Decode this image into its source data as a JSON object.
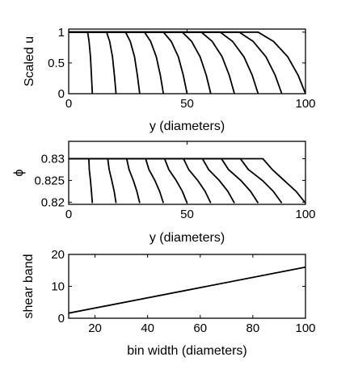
{
  "chart_data": [
    {
      "type": "line",
      "xlabel": "y (diameters)",
      "ylabel": "Scaled u",
      "xlim": [
        0,
        100
      ],
      "ylim": [
        0,
        1.05
      ],
      "xticks": [
        0,
        50,
        100
      ],
      "xtick_labels": [
        "0",
        "50",
        "100"
      ],
      "yticks": [
        0,
        0.5,
        1
      ],
      "ytick_labels": [
        "0",
        "0.5",
        "1"
      ],
      "grid": false,
      "series": [
        {
          "x": [
            0,
            8,
            8.6,
            9.2,
            9.6,
            10
          ],
          "y": [
            1,
            1,
            0.85,
            0.6,
            0.3,
            0
          ]
        },
        {
          "x": [
            0,
            16,
            17.3,
            18.5,
            19.3,
            20
          ],
          "y": [
            1,
            1,
            0.85,
            0.6,
            0.3,
            0
          ]
        },
        {
          "x": [
            0,
            24,
            26,
            27.8,
            29,
            30
          ],
          "y": [
            1,
            1,
            0.85,
            0.6,
            0.3,
            0
          ]
        },
        {
          "x": [
            0,
            32,
            34.6,
            37,
            38.7,
            40
          ],
          "y": [
            1,
            1,
            0.85,
            0.6,
            0.3,
            0
          ]
        },
        {
          "x": [
            0,
            40,
            43.3,
            46.3,
            48.4,
            50
          ],
          "y": [
            1,
            1,
            0.85,
            0.6,
            0.3,
            0
          ]
        },
        {
          "x": [
            0,
            48,
            51.9,
            55.5,
            58.1,
            60
          ],
          "y": [
            1,
            1,
            0.85,
            0.6,
            0.3,
            0
          ]
        },
        {
          "x": [
            0,
            56,
            60.6,
            64.8,
            67.8,
            70
          ],
          "y": [
            1,
            1,
            0.85,
            0.6,
            0.3,
            0
          ]
        },
        {
          "x": [
            0,
            64,
            69.2,
            74,
            77.5,
            80
          ],
          "y": [
            1,
            1,
            0.85,
            0.6,
            0.3,
            0
          ]
        },
        {
          "x": [
            0,
            72,
            77.9,
            83.3,
            87.2,
            90
          ],
          "y": [
            1,
            1,
            0.85,
            0.6,
            0.3,
            0
          ]
        },
        {
          "x": [
            0,
            80,
            86.5,
            92.5,
            96.9,
            100
          ],
          "y": [
            1,
            1,
            0.85,
            0.6,
            0.3,
            0
          ]
        }
      ]
    },
    {
      "type": "line",
      "xlabel": "y (diameters)",
      "ylabel": "ϕ",
      "xlim": [
        0,
        100
      ],
      "ylim": [
        0.8195,
        0.834
      ],
      "xticks": [
        0,
        50,
        100
      ],
      "xtick_labels": [
        "0",
        "50",
        "100"
      ],
      "yticks": [
        0.82,
        0.825,
        0.83
      ],
      "ytick_labels": [
        "0.82",
        "0.825",
        "0.83"
      ],
      "grid": false,
      "series": [
        {
          "x": [
            0,
            8.5,
            8.7,
            9.2,
            9.6,
            10
          ],
          "y": [
            0.83,
            0.83,
            0.8275,
            0.825,
            0.8225,
            0.8198
          ]
        },
        {
          "x": [
            0,
            16.5,
            17.1,
            18.2,
            19.2,
            20
          ],
          "y": [
            0.83,
            0.83,
            0.8275,
            0.825,
            0.8225,
            0.8198
          ]
        },
        {
          "x": [
            0,
            24.5,
            25.5,
            27.3,
            28.8,
            30
          ],
          "y": [
            0.83,
            0.83,
            0.8275,
            0.825,
            0.8225,
            0.8198
          ]
        },
        {
          "x": [
            0,
            32.5,
            33.9,
            36.4,
            38.4,
            40
          ],
          "y": [
            0.83,
            0.83,
            0.8275,
            0.825,
            0.8225,
            0.8198
          ]
        },
        {
          "x": [
            0,
            40.5,
            42.3,
            45.4,
            48,
            50
          ],
          "y": [
            0.83,
            0.83,
            0.8275,
            0.825,
            0.8225,
            0.8198
          ]
        },
        {
          "x": [
            0,
            48.5,
            50.7,
            54.5,
            57.6,
            60
          ],
          "y": [
            0.83,
            0.83,
            0.8275,
            0.825,
            0.8225,
            0.8198
          ]
        },
        {
          "x": [
            0,
            56.5,
            59.1,
            63.6,
            67.2,
            70
          ],
          "y": [
            0.83,
            0.83,
            0.8275,
            0.825,
            0.8225,
            0.8198
          ]
        },
        {
          "x": [
            0,
            64.5,
            67.5,
            72.7,
            76.8,
            80
          ],
          "y": [
            0.83,
            0.83,
            0.8275,
            0.825,
            0.8225,
            0.8198
          ]
        },
        {
          "x": [
            0,
            72.5,
            75.9,
            81.8,
            86.4,
            90
          ],
          "y": [
            0.83,
            0.83,
            0.8275,
            0.825,
            0.8225,
            0.8198
          ]
        },
        {
          "x": [
            0,
            82,
            86,
            91,
            96,
            100
          ],
          "y": [
            0.83,
            0.83,
            0.8275,
            0.825,
            0.8225,
            0.8198
          ]
        }
      ]
    },
    {
      "type": "line",
      "xlabel": "bin width (diameters)",
      "ylabel": "shear band",
      "xlim": [
        10,
        100
      ],
      "ylim": [
        0,
        20
      ],
      "xticks": [
        20,
        40,
        60,
        80,
        100
      ],
      "xtick_labels": [
        "20",
        "40",
        "60",
        "80",
        "100"
      ],
      "yticks": [
        0,
        10,
        20
      ],
      "ytick_labels": [
        "0",
        "10",
        "20"
      ],
      "grid": false,
      "series": [
        {
          "x": [
            10,
            100
          ],
          "y": [
            1.6,
            16
          ]
        }
      ]
    }
  ]
}
